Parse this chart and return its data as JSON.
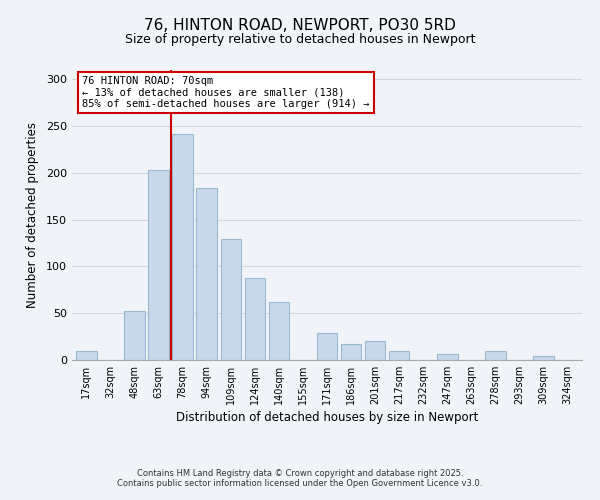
{
  "title": "76, HINTON ROAD, NEWPORT, PO30 5RD",
  "subtitle": "Size of property relative to detached houses in Newport",
  "xlabel": "Distribution of detached houses by size in Newport",
  "ylabel": "Number of detached properties",
  "bar_color": "#c8d8ea",
  "bar_edge_color": "#9ab8d0",
  "categories": [
    "17sqm",
    "32sqm",
    "48sqm",
    "63sqm",
    "78sqm",
    "94sqm",
    "109sqm",
    "124sqm",
    "140sqm",
    "155sqm",
    "171sqm",
    "186sqm",
    "201sqm",
    "217sqm",
    "232sqm",
    "247sqm",
    "263sqm",
    "278sqm",
    "293sqm",
    "309sqm",
    "324sqm"
  ],
  "values": [
    10,
    0,
    52,
    203,
    242,
    184,
    129,
    88,
    62,
    0,
    29,
    17,
    20,
    10,
    0,
    6,
    0,
    10,
    0,
    4,
    0
  ],
  "ylim": [
    0,
    310
  ],
  "yticks": [
    0,
    50,
    100,
    150,
    200,
    250,
    300
  ],
  "vline_x": 3.5,
  "vline_color": "#cc0000",
  "annotation_text": "76 HINTON ROAD: 70sqm\n← 13% of detached houses are smaller (138)\n85% of semi-detached houses are larger (914) →",
  "annotation_box_color": "white",
  "annotation_box_edge": "#cc0000",
  "footer1": "Contains HM Land Registry data © Crown copyright and database right 2025.",
  "footer2": "Contains public sector information licensed under the Open Government Licence v3.0.",
  "grid_color": "#d0d8e0",
  "background_color": "#f0f4f8"
}
